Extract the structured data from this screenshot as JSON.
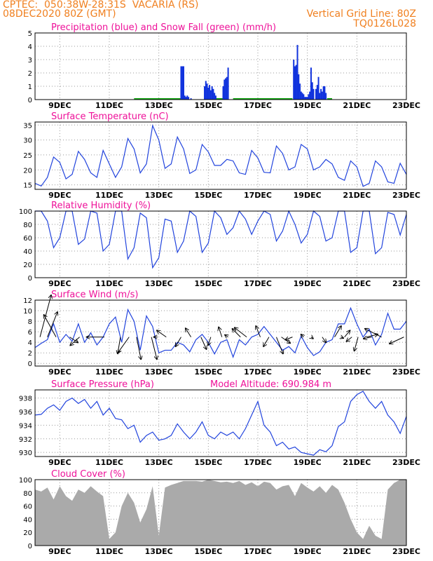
{
  "header": {
    "line1": "CPTEC:  050:38W-28:31S  VACARIA (RS)",
    "line2": "08DEC2020 80Z (GMT)",
    "grid_note": "Vertical Grid Line: 80Z",
    "run_code": "TQ0126L028"
  },
  "colors": {
    "header": "#f08020",
    "title": "#ee1199",
    "rain": "#1133dd",
    "snow": "#11aa11",
    "line": "#2244dd",
    "cloud": "#aaaaaa"
  },
  "chart_data": [
    {
      "type": "bar",
      "id": "precip",
      "title": "Precipitation (blue) and Snow Fall (green) (mm/h)",
      "ylim": [
        0,
        5
      ],
      "yticks": [
        0,
        1,
        2,
        3,
        4,
        5
      ],
      "xlim": [
        8.0,
        23.0
      ],
      "xticks": [
        "9DEC",
        "11DEC",
        "13DEC",
        "15DEC",
        "17DEC",
        "19DEC",
        "21DEC",
        "23DEC"
      ],
      "xtick_values": [
        9,
        11,
        13,
        15,
        17,
        19,
        21,
        23
      ],
      "rain": [
        [
          13.9,
          2.5
        ],
        [
          13.95,
          2.5
        ],
        [
          14.0,
          2.5
        ],
        [
          14.05,
          0.3
        ],
        [
          14.1,
          0.2
        ],
        [
          14.15,
          0.3
        ],
        [
          14.2,
          0.2
        ],
        [
          14.3,
          0.1
        ],
        [
          14.85,
          1.0
        ],
        [
          14.9,
          1.4
        ],
        [
          14.95,
          1.2
        ],
        [
          15.0,
          0.9
        ],
        [
          15.05,
          1.1
        ],
        [
          15.1,
          0.7
        ],
        [
          15.15,
          1.0
        ],
        [
          15.2,
          0.8
        ],
        [
          15.25,
          0.5
        ],
        [
          15.3,
          0.3
        ],
        [
          15.6,
          1.0
        ],
        [
          15.65,
          1.5
        ],
        [
          15.7,
          1.6
        ],
        [
          15.75,
          1.7
        ],
        [
          15.8,
          2.4
        ],
        [
          18.45,
          3.0
        ],
        [
          18.5,
          2.5
        ],
        [
          18.55,
          2.6
        ],
        [
          18.6,
          4.1
        ],
        [
          18.65,
          1.9
        ],
        [
          18.7,
          1.2
        ],
        [
          18.75,
          0.6
        ],
        [
          18.8,
          0.5
        ],
        [
          18.85,
          0.4
        ],
        [
          18.9,
          0.2
        ],
        [
          18.95,
          0.2
        ],
        [
          19.0,
          0.2
        ],
        [
          19.05,
          0.4
        ],
        [
          19.1,
          0.6
        ],
        [
          19.15,
          2.4
        ],
        [
          19.2,
          1.3
        ],
        [
          19.25,
          0.8
        ],
        [
          19.35,
          0.8
        ],
        [
          19.4,
          1.1
        ],
        [
          19.45,
          1.7
        ],
        [
          19.5,
          0.5
        ],
        [
          19.55,
          0.8
        ],
        [
          19.6,
          0.6
        ],
        [
          19.65,
          1.0
        ],
        [
          19.7,
          1.0
        ],
        [
          19.75,
          0.5
        ]
      ],
      "snow": [
        [
          12.0,
          13.9
        ],
        [
          15.3,
          15.6
        ],
        [
          16.0,
          18.4
        ],
        [
          19.8,
          20.0
        ]
      ]
    },
    {
      "type": "line",
      "id": "temp",
      "title": "Surface Temperature (nC)",
      "ylim": [
        13.5,
        36
      ],
      "yticks": [
        15,
        20,
        25,
        30,
        35
      ],
      "xlim": [
        8.0,
        23.0
      ],
      "xticks": [
        "9DEC",
        "11DEC",
        "13DEC",
        "15DEC",
        "17DEC",
        "19DEC",
        "21DEC",
        "23DEC"
      ],
      "xtick_values": [
        9,
        11,
        13,
        15,
        17,
        19,
        21,
        23
      ],
      "x": [
        8.0,
        8.25,
        8.5,
        8.75,
        9.0,
        9.25,
        9.5,
        9.75,
        10.0,
        10.25,
        10.5,
        10.75,
        11.0,
        11.25,
        11.5,
        11.75,
        12.0,
        12.25,
        12.5,
        12.75,
        13.0,
        13.25,
        13.5,
        13.75,
        14.0,
        14.25,
        14.5,
        14.75,
        15.0,
        15.25,
        15.5,
        15.75,
        16.0,
        16.25,
        16.5,
        16.75,
        17.0,
        17.25,
        17.5,
        17.75,
        18.0,
        18.25,
        18.5,
        18.75,
        19.0,
        19.25,
        19.5,
        19.75,
        20.0,
        20.25,
        20.5,
        20.75,
        21.0,
        21.25,
        21.5,
        21.75,
        22.0,
        22.25,
        22.5,
        22.75,
        23.0
      ],
      "values": [
        15.5,
        14.6,
        17.5,
        24.3,
        22.5,
        17.0,
        18.5,
        26.2,
        23.5,
        19.0,
        17.5,
        26.5,
        22.0,
        17.5,
        21.0,
        30.5,
        27.0,
        19.0,
        22.0,
        34.8,
        30.0,
        20.5,
        22.0,
        31.0,
        27.0,
        18.8,
        20.0,
        28.5,
        26.0,
        21.5,
        21.5,
        23.5,
        23.0,
        19.0,
        18.5,
        26.5,
        24.0,
        19.2,
        19.0,
        28.0,
        25.5,
        20.0,
        21.0,
        28.5,
        27.0,
        20.0,
        21.0,
        23.5,
        22.0,
        17.5,
        16.5,
        23.0,
        21.0,
        14.5,
        15.5,
        23.0,
        21.0,
        16.0,
        15.5,
        22.2,
        18.5
      ]
    },
    {
      "type": "line",
      "id": "rh",
      "title": "Relative Humidity (%)",
      "ylim": [
        0,
        100
      ],
      "yticks": [
        0,
        20,
        40,
        60,
        80,
        100
      ],
      "xlim": [
        8.0,
        23.0
      ],
      "xticks": [
        "9DEC",
        "11DEC",
        "13DEC",
        "15DEC",
        "17DEC",
        "19DEC",
        "21DEC",
        "23DEC"
      ],
      "xtick_values": [
        9,
        11,
        13,
        15,
        17,
        19,
        21,
        23
      ],
      "x": [
        8.0,
        8.25,
        8.5,
        8.75,
        9.0,
        9.25,
        9.5,
        9.75,
        10.0,
        10.25,
        10.5,
        10.75,
        11.0,
        11.25,
        11.5,
        11.75,
        12.0,
        12.25,
        12.5,
        12.75,
        13.0,
        13.25,
        13.5,
        13.75,
        14.0,
        14.25,
        14.5,
        14.75,
        15.0,
        15.25,
        15.5,
        15.75,
        16.0,
        16.25,
        16.5,
        16.75,
        17.0,
        17.25,
        17.5,
        17.75,
        18.0,
        18.25,
        18.5,
        18.75,
        19.0,
        19.25,
        19.5,
        19.75,
        20.0,
        20.25,
        20.5,
        20.75,
        21.0,
        21.25,
        21.5,
        21.75,
        22.0,
        22.25,
        22.5,
        22.75,
        23.0
      ],
      "values": [
        100,
        100,
        85,
        45,
        60,
        100,
        100,
        50,
        58,
        100,
        97,
        40,
        50,
        100,
        100,
        28,
        45,
        97,
        90,
        15,
        30,
        88,
        85,
        38,
        55,
        100,
        92,
        38,
        52,
        100,
        90,
        65,
        75,
        100,
        88,
        65,
        85,
        100,
        95,
        55,
        70,
        100,
        80,
        52,
        65,
        100,
        92,
        55,
        60,
        100,
        100,
        38,
        45,
        100,
        100,
        36,
        45,
        98,
        95,
        64,
        95
      ]
    },
    {
      "type": "line",
      "id": "wind",
      "title": "Surface Wind (m/s)",
      "ylim": [
        -0.5,
        12
      ],
      "yticks": [
        0,
        2,
        4,
        6,
        8,
        10,
        12
      ],
      "xlim": [
        8.0,
        23.0
      ],
      "xticks": [
        "9DEC",
        "11DEC",
        "13DEC",
        "15DEC",
        "17DEC",
        "19DEC",
        "21DEC",
        "23DEC"
      ],
      "xtick_values": [
        9,
        11,
        13,
        15,
        17,
        19,
        21,
        23
      ],
      "x": [
        8.0,
        8.25,
        8.5,
        8.75,
        9.0,
        9.25,
        9.5,
        9.75,
        10.0,
        10.25,
        10.5,
        10.75,
        11.0,
        11.25,
        11.5,
        11.75,
        12.0,
        12.25,
        12.5,
        12.75,
        13.0,
        13.25,
        13.5,
        13.75,
        14.0,
        14.25,
        14.5,
        14.75,
        15.0,
        15.25,
        15.5,
        15.75,
        16.0,
        16.25,
        16.5,
        16.75,
        17.0,
        17.25,
        17.5,
        17.75,
        18.0,
        18.25,
        18.5,
        18.75,
        19.0,
        19.25,
        19.5,
        19.75,
        20.0,
        20.25,
        20.5,
        20.75,
        21.0,
        21.25,
        21.5,
        21.75,
        22.0,
        22.25,
        22.5,
        22.75,
        23.0
      ],
      "values": [
        3.0,
        3.8,
        4.5,
        7.5,
        4.0,
        5.5,
        4.2,
        7.5,
        4.0,
        5.8,
        3.5,
        5.0,
        7.5,
        8.8,
        4.0,
        10.2,
        8.0,
        2.5,
        9.0,
        7.0,
        2.0,
        2.5,
        2.5,
        4.0,
        3.5,
        2.2,
        4.5,
        5.5,
        4.0,
        1.8,
        4.0,
        4.5,
        1.2,
        4.5,
        3.5,
        5.0,
        5.5,
        7.0,
        5.5,
        4.0,
        2.5,
        3.2,
        2.0,
        5.2,
        3.0,
        1.5,
        2.2,
        4.0,
        4.5,
        7.5,
        7.5,
        10.5,
        7.5,
        5.0,
        6.5,
        3.5,
        5.5,
        9.5,
        6.5,
        6.5,
        8.0
      ],
      "arrows": [
        [
          8.2,
          2.0,
          7.5
        ],
        [
          8.5,
          1.8,
          4.5
        ],
        [
          8.85,
          -2.2,
          4.0
        ],
        [
          9.4,
          1.5,
          -1.0
        ],
        [
          9.8,
          -1.7,
          -1.5
        ],
        [
          10.8,
          -3.2,
          0.0
        ],
        [
          11.45,
          -0.5,
          -3.0
        ],
        [
          11.8,
          -2.0,
          -2.8
        ],
        [
          12.1,
          0.8,
          -4.0
        ],
        [
          12.7,
          1.0,
          -4.0
        ],
        [
          12.95,
          -0.7,
          0.0
        ],
        [
          13.3,
          -1.7,
          1.2
        ],
        [
          13.9,
          -1.0,
          -1.7
        ],
        [
          14.3,
          -1.0,
          1.6
        ],
        [
          14.7,
          1.0,
          -2.2
        ],
        [
          15.1,
          -0.5,
          -1.5
        ],
        [
          15.55,
          -0.6,
          1.8
        ],
        [
          15.8,
          -0.6,
          0.4
        ],
        [
          16.3,
          -1.5,
          1.5
        ],
        [
          16.55,
          -2.2,
          1.7
        ],
        [
          17.1,
          -0.8,
          2.0
        ],
        [
          17.45,
          -1.0,
          -1.7
        ],
        [
          17.75,
          1.2,
          -3.0
        ],
        [
          17.95,
          1.6,
          -1.1
        ],
        [
          18.4,
          -1.3,
          -0.5
        ],
        [
          18.85,
          -0.5,
          0.5
        ],
        [
          19.15,
          0.4,
          -0.3
        ],
        [
          19.6,
          0.7,
          -1.0
        ],
        [
          20.1,
          1.2,
          2.0
        ],
        [
          20.35,
          0.5,
          -0.2
        ],
        [
          20.5,
          1.0,
          1.2
        ],
        [
          20.8,
          -1.0,
          -0.8
        ],
        [
          21.05,
          -0.7,
          -2.5
        ],
        [
          21.4,
          2.0,
          0.5
        ],
        [
          21.6,
          -1.5,
          -0.3
        ],
        [
          22.0,
          -3.0,
          1.5
        ],
        [
          22.9,
          -2.6,
          -1.2
        ]
      ]
    },
    {
      "type": "line",
      "id": "pres",
      "title": "Surface Pressure (hPa)",
      "subtitle": "Model Altitude: 690.984  m",
      "ylim": [
        929.4,
        939.2
      ],
      "yticks": [
        930,
        932,
        934,
        936,
        938
      ],
      "xlim": [
        8.0,
        23.0
      ],
      "xticks": [
        "9DEC",
        "11DEC",
        "13DEC",
        "15DEC",
        "17DEC",
        "19DEC",
        "21DEC",
        "23DEC"
      ],
      "xtick_values": [
        9,
        11,
        13,
        15,
        17,
        19,
        21,
        23
      ],
      "x": [
        8.0,
        8.25,
        8.5,
        8.75,
        9.0,
        9.25,
        9.5,
        9.75,
        10.0,
        10.25,
        10.5,
        10.75,
        11.0,
        11.25,
        11.5,
        11.75,
        12.0,
        12.25,
        12.5,
        12.75,
        13.0,
        13.25,
        13.5,
        13.75,
        14.0,
        14.25,
        14.5,
        14.75,
        15.0,
        15.25,
        15.5,
        15.75,
        16.0,
        16.25,
        16.5,
        16.75,
        17.0,
        17.25,
        17.5,
        17.75,
        18.0,
        18.25,
        18.5,
        18.75,
        19.0,
        19.25,
        19.5,
        19.75,
        20.0,
        20.25,
        20.5,
        20.75,
        21.0,
        21.25,
        21.5,
        21.75,
        22.0,
        22.25,
        22.5,
        22.75,
        23.0
      ],
      "values": [
        935.5,
        935.6,
        936.5,
        937.0,
        936.2,
        937.5,
        938.0,
        937.2,
        937.8,
        936.5,
        937.5,
        935.5,
        936.5,
        935.0,
        934.8,
        933.5,
        934.0,
        931.5,
        932.5,
        933.0,
        931.8,
        932.0,
        932.5,
        934.2,
        933.0,
        932.0,
        933.0,
        934.5,
        932.5,
        932.0,
        933.0,
        932.5,
        933.0,
        932.0,
        933.5,
        935.5,
        937.5,
        934.0,
        933.0,
        931.0,
        931.5,
        930.5,
        930.8,
        930.0,
        929.8,
        929.6,
        930.4,
        930.1,
        931.0,
        933.8,
        934.5,
        937.5,
        938.5,
        939.0,
        937.5,
        936.5,
        937.5,
        935.5,
        934.5,
        932.8,
        935.3
      ]
    },
    {
      "type": "area",
      "id": "cloud",
      "title": "Cloud Cover (%)",
      "ylim": [
        0,
        100
      ],
      "yticks": [
        0,
        20,
        40,
        60,
        80,
        100
      ],
      "xlim": [
        8.0,
        23.0
      ],
      "xticks": [
        "9DEC",
        "11DEC",
        "13DEC",
        "15DEC",
        "17DEC",
        "19DEC",
        "21DEC",
        "23DEC"
      ],
      "xtick_values": [
        9,
        11,
        13,
        15,
        17,
        19,
        21,
        23
      ],
      "x": [
        8.0,
        8.25,
        8.5,
        8.75,
        9.0,
        9.25,
        9.5,
        9.75,
        10.0,
        10.25,
        10.5,
        10.75,
        11.0,
        11.25,
        11.5,
        11.75,
        12.0,
        12.25,
        12.5,
        12.75,
        13.0,
        13.25,
        13.5,
        13.75,
        14.0,
        14.25,
        14.5,
        14.75,
        15.0,
        15.25,
        15.5,
        15.75,
        16.0,
        16.25,
        16.5,
        16.75,
        17.0,
        17.25,
        17.5,
        17.75,
        18.0,
        18.25,
        18.5,
        18.75,
        19.0,
        19.25,
        19.5,
        19.75,
        20.0,
        20.25,
        20.5,
        20.75,
        21.0,
        21.25,
        21.5,
        21.75,
        22.0,
        22.25,
        22.5,
        22.75,
        23.0
      ],
      "values": [
        85,
        82,
        88,
        70,
        90,
        75,
        68,
        85,
        80,
        90,
        82,
        75,
        10,
        20,
        60,
        80,
        65,
        35,
        55,
        90,
        15,
        88,
        92,
        95,
        98,
        98,
        98,
        97,
        100,
        98,
        96,
        97,
        95,
        98,
        92,
        96,
        90,
        97,
        95,
        85,
        90,
        92,
        75,
        95,
        88,
        82,
        90,
        80,
        92,
        85,
        65,
        40,
        20,
        10,
        30,
        15,
        10,
        85,
        95,
        100,
        100
      ]
    }
  ]
}
